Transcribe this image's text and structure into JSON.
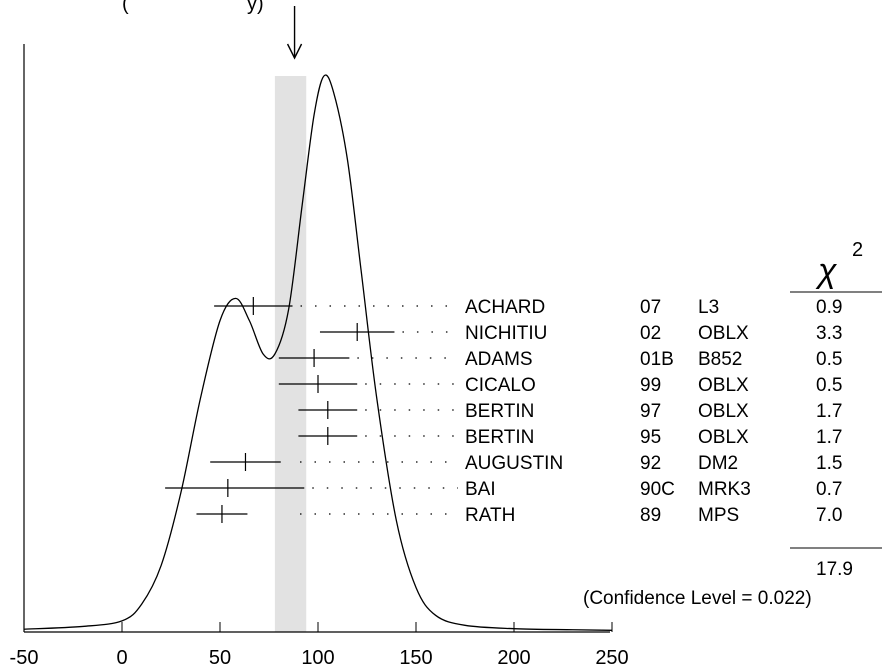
{
  "header_fragment": "(",
  "header_fragment_2": "y)",
  "chart_data": {
    "type": "ideogram",
    "x_ticks": [
      -50,
      0,
      50,
      100,
      150,
      200,
      250
    ],
    "xlim": [
      -60,
      250
    ],
    "ylabel": "",
    "xlabel": "",
    "average_value": 86,
    "error_band": [
      78,
      94
    ],
    "curve": [
      [
        -50,
        0.005
      ],
      [
        -20,
        0.01
      ],
      [
        0,
        0.02
      ],
      [
        10,
        0.05
      ],
      [
        20,
        0.12
      ],
      [
        30,
        0.25
      ],
      [
        40,
        0.42
      ],
      [
        50,
        0.56
      ],
      [
        58,
        0.6
      ],
      [
        65,
        0.56
      ],
      [
        72,
        0.5
      ],
      [
        78,
        0.5
      ],
      [
        85,
        0.58
      ],
      [
        92,
        0.77
      ],
      [
        98,
        0.93
      ],
      [
        103,
        1.0
      ],
      [
        108,
        0.97
      ],
      [
        115,
        0.85
      ],
      [
        122,
        0.65
      ],
      [
        130,
        0.42
      ],
      [
        140,
        0.2
      ],
      [
        150,
        0.08
      ],
      [
        160,
        0.03
      ],
      [
        175,
        0.012
      ],
      [
        200,
        0.006
      ],
      [
        230,
        0.004
      ],
      [
        250,
        0.003
      ]
    ],
    "chi2_header": "χ",
    "chi2_sup": "2",
    "measurements": [
      {
        "name": "ACHARD",
        "year": "07",
        "tech": "L3",
        "chi2": "0.9",
        "value": 67,
        "low": 47,
        "high": 87
      },
      {
        "name": "NICHITIU",
        "year": "02",
        "tech": "OBLX",
        "chi2": "3.3",
        "value": 120,
        "low": 101,
        "high": 139
      },
      {
        "name": "ADAMS",
        "year": "01B",
        "tech": "B852",
        "chi2": "0.5",
        "value": 98,
        "low": 80,
        "high": 116
      },
      {
        "name": "CICALO",
        "year": "99",
        "tech": "OBLX",
        "chi2": "0.5",
        "value": 100,
        "low": 80,
        "high": 120
      },
      {
        "name": "BERTIN",
        "year": "97",
        "tech": "OBLX",
        "chi2": "1.7",
        "value": 105,
        "low": 90,
        "high": 120
      },
      {
        "name": "BERTIN",
        "year": "95",
        "tech": "OBLX",
        "chi2": "1.7",
        "value": 105,
        "low": 90,
        "high": 120
      },
      {
        "name": "AUGUSTIN",
        "year": "92",
        "tech": "DM2",
        "chi2": "1.5",
        "value": 63,
        "low": 45,
        "high": 81
      },
      {
        "name": "BAI",
        "year": "90C",
        "tech": "MRK3",
        "chi2": "0.7",
        "value": 54,
        "low": 22,
        "high": 93
      },
      {
        "name": "RATH",
        "year": "89",
        "tech": "MPS",
        "chi2": "7.0",
        "value": 51,
        "low": 38,
        "high": 64
      }
    ],
    "chi2_total": "17.9",
    "confidence_text": "(Confidence Level = 0.022)"
  }
}
